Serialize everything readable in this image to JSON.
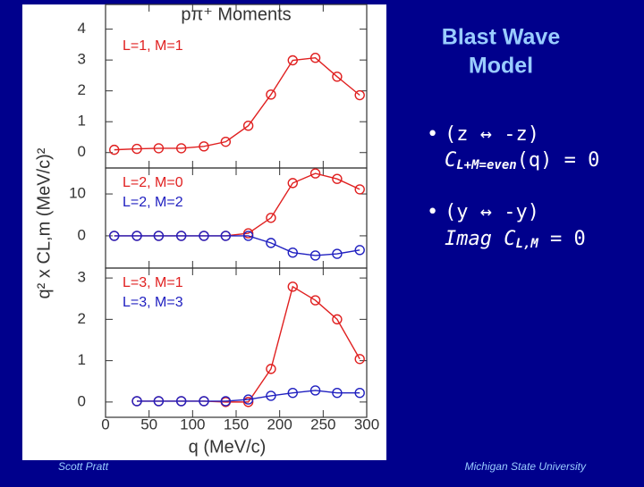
{
  "slide": {
    "title_lines": [
      "Blast Wave",
      "Model"
    ],
    "bullets": [
      {
        "head": "(z ↔ -z)",
        "expr": [
          "C",
          "L+M=even",
          "(q) = 0"
        ]
      },
      {
        "head": "(y ↔ -y)",
        "expr": [
          "Imag C",
          "L,M",
          " = 0"
        ]
      }
    ],
    "ylabel": "q² x CL,m (MeV/c)²",
    "footer_left": "Scott Pratt",
    "footer_right": "Michigan State University"
  },
  "chart_data": [
    {
      "type": "line",
      "title": "pπ⁺ Moments",
      "x": [
        10,
        36,
        61,
        87,
        113,
        138,
        164,
        190,
        215,
        241,
        266,
        292
      ],
      "series": [
        {
          "name": "L=1, M=1",
          "color": "#e02020",
          "values": [
            0.09,
            0.12,
            0.14,
            0.14,
            0.2,
            0.35,
            0.87,
            1.88,
            2.99,
            3.07,
            2.46,
            1.86
          ]
        }
      ],
      "xlim": [
        0,
        300
      ],
      "ylim": [
        -0.5,
        4.8
      ],
      "yticks": [
        0,
        1,
        2,
        3,
        4
      ]
    },
    {
      "type": "line",
      "x": [
        10,
        36,
        61,
        87,
        113,
        138,
        164,
        190,
        215,
        241,
        266,
        292
      ],
      "series": [
        {
          "name": "L=2, M=0",
          "color": "#e02020",
          "values": [
            0,
            0,
            0,
            0,
            0,
            0,
            0.6,
            4.3,
            12.6,
            14.9,
            13.6,
            11.1
          ]
        },
        {
          "name": "L=2, M=2",
          "color": "#2020c0",
          "values": [
            0,
            0,
            0,
            0,
            0,
            0,
            0,
            -1.7,
            -4,
            -4.7,
            -4.3,
            -3.4
          ]
        }
      ],
      "xlim": [
        0,
        300
      ],
      "ylim": [
        -7.7,
        16.2
      ],
      "yticks": [
        0,
        10
      ]
    },
    {
      "type": "line",
      "xlabel": "q  (MeV/c)",
      "x": [
        10,
        36,
        61,
        87,
        113,
        138,
        164,
        190,
        215,
        241,
        266,
        292
      ],
      "series": [
        {
          "name": "L=3, M=1",
          "color": "#e02020",
          "values": [
            null,
            0.02,
            0.02,
            0.02,
            0.02,
            0.0,
            0.0,
            0.8,
            2.79,
            2.46,
            2.0,
            1.04
          ]
        },
        {
          "name": "L=3, M=3",
          "color": "#2020c0",
          "values": [
            null,
            0.02,
            0.02,
            0.02,
            0.02,
            0.02,
            0.06,
            0.15,
            0.22,
            0.28,
            0.22,
            0.22
          ]
        }
      ],
      "xlim": [
        0,
        300
      ],
      "ylim": [
        -0.37,
        3.24
      ],
      "yticks": [
        0,
        1,
        2,
        3
      ],
      "xticks": [
        0,
        50,
        100,
        150,
        200,
        250,
        300
      ]
    }
  ]
}
